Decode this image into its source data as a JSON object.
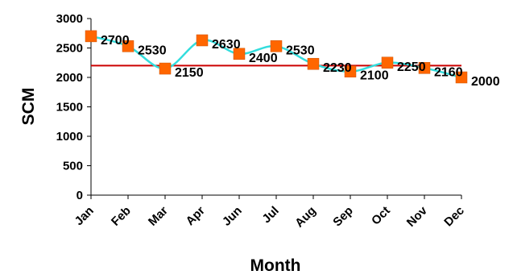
{
  "chart_data": {
    "type": "line",
    "title": "",
    "xlabel": "Month",
    "ylabel": "SCM",
    "categories": [
      "Jan",
      "Feb",
      "Mar",
      "Apr",
      "Jun",
      "Jul",
      "Aug",
      "Sep",
      "Oct",
      "Nov",
      "Dec"
    ],
    "series": [
      {
        "values": [
          2700,
          2530,
          2150,
          2630,
          2400,
          2530,
          2230,
          2100,
          2250,
          2160,
          2000
        ]
      }
    ],
    "reference_line": {
      "value": 2200,
      "color": "#cc0000"
    },
    "ylim": [
      0,
      3000
    ],
    "yticks": [
      0,
      500,
      1000,
      1500,
      2000,
      2500,
      3000
    ],
    "line_color": "#33dddd",
    "marker_color": "#ff6600",
    "marker_shape": "square",
    "line_style": "smooth",
    "grid": false,
    "legend": "none"
  }
}
